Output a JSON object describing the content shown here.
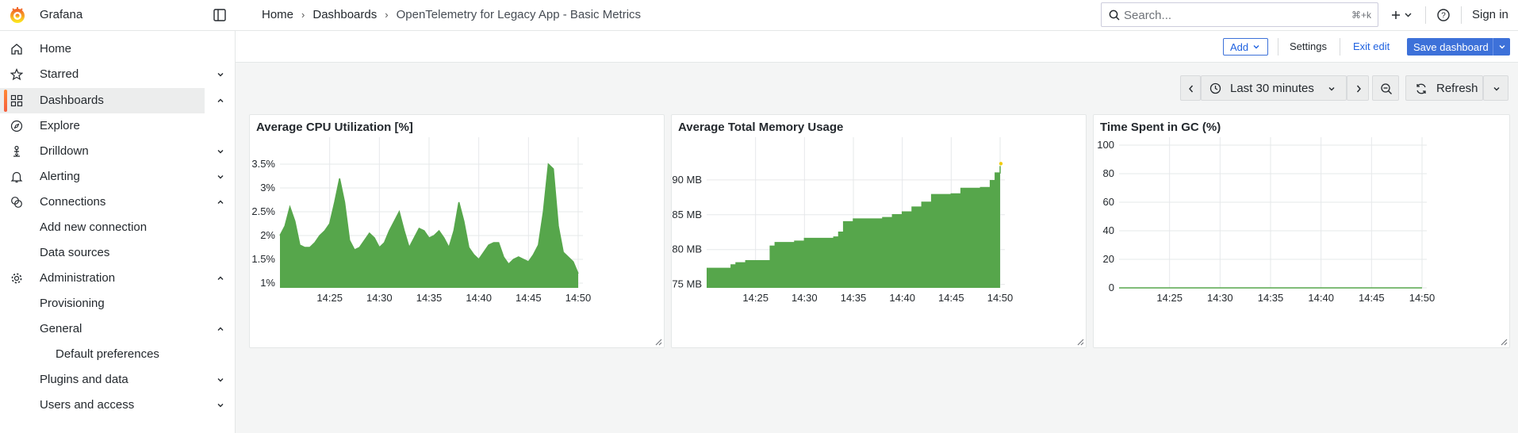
{
  "app": {
    "name": "Grafana",
    "accent": "#f55f3e"
  },
  "breadcrumbs": [
    {
      "label": "Home"
    },
    {
      "label": "Dashboards"
    },
    {
      "label": "OpenTelemetry for Legacy App - Basic Metrics"
    }
  ],
  "search": {
    "placeholder": "Search...",
    "shortcut": "⌘+k"
  },
  "topbar": {
    "signin": "Sign in"
  },
  "sidebar": {
    "items": [
      {
        "label": "Home",
        "icon": "home-icon"
      },
      {
        "label": "Starred",
        "icon": "star-icon",
        "chevron": "down"
      },
      {
        "label": "Dashboards",
        "icon": "apps-icon",
        "chevron": "up",
        "active": true
      },
      {
        "label": "Explore",
        "icon": "compass-icon"
      },
      {
        "label": "Drilldown",
        "icon": "drilldown-icon",
        "chevron": "down"
      },
      {
        "label": "Alerting",
        "icon": "bell-icon",
        "chevron": "down"
      },
      {
        "label": "Connections",
        "icon": "link-icon",
        "chevron": "up"
      },
      {
        "label": "Add new connection"
      },
      {
        "label": "Data sources"
      },
      {
        "label": "Administration",
        "icon": "cog-icon",
        "chevron": "up"
      },
      {
        "label": "Provisioning"
      },
      {
        "label": "General",
        "chevron": "up"
      },
      {
        "label": "Default preferences"
      },
      {
        "label": "Plugins and data",
        "chevron": "down"
      },
      {
        "label": "Users and access",
        "chevron": "down"
      }
    ]
  },
  "actionbar": {
    "add": "Add",
    "settings": "Settings",
    "exit_edit": "Exit edit",
    "save": "Save dashboard"
  },
  "time": {
    "range": "Last 30 minutes",
    "refresh": "Refresh"
  },
  "panels": [
    {
      "title": "Average CPU Utilization [%]"
    },
    {
      "title": "Average Total Memory Usage"
    },
    {
      "title": "Time Spent in GC (%)"
    }
  ],
  "chart_data": [
    {
      "type": "area",
      "title": "Average CPU Utilization [%]",
      "xlabel": "",
      "ylabel": "",
      "x_ticks": [
        "14:25",
        "14:30",
        "14:35",
        "14:40",
        "14:45",
        "14:50"
      ],
      "y_ticks": [
        "1%",
        "1.5%",
        "2%",
        "2.5%",
        "3%",
        "3.5%"
      ],
      "xlim": [
        "14:20",
        "14:50"
      ],
      "ylim": [
        0.9,
        3.9
      ],
      "grid": true,
      "color": "#56a64b",
      "series": [
        {
          "x": [
            "14:20",
            "14:20:30",
            "14:21",
            "14:21:30",
            "14:22",
            "14:22:30",
            "14:23",
            "14:23:30",
            "14:24",
            "14:24:30",
            "14:25",
            "14:25:30",
            "14:26",
            "14:26:30",
            "14:27",
            "14:27:30",
            "14:28",
            "14:28:30",
            "14:29",
            "14:29:30",
            "14:30",
            "14:30:30",
            "14:31",
            "14:31:30",
            "14:32",
            "14:32:30",
            "14:33",
            "14:33:30",
            "14:34",
            "14:34:30",
            "14:35",
            "14:35:30",
            "14:36",
            "14:36:30",
            "14:37",
            "14:37:30",
            "14:38",
            "14:38:30",
            "14:39",
            "14:39:30",
            "14:40",
            "14:40:30",
            "14:41",
            "14:41:30",
            "14:42",
            "14:42:30",
            "14:43",
            "14:43:30",
            "14:44",
            "14:44:30",
            "14:45",
            "14:45:30",
            "14:46",
            "14:46:30",
            "14:47",
            "14:47:30",
            "14:48",
            "14:48:30",
            "14:49",
            "14:49:30",
            "14:50"
          ],
          "values": [
            2.0,
            2.2,
            2.6,
            2.3,
            1.8,
            1.75,
            1.75,
            1.85,
            2.0,
            2.1,
            2.25,
            2.7,
            3.2,
            2.7,
            1.9,
            1.7,
            1.75,
            1.9,
            2.05,
            1.95,
            1.75,
            1.85,
            2.1,
            2.3,
            2.5,
            2.1,
            1.75,
            1.95,
            2.15,
            2.1,
            1.95,
            2.0,
            2.1,
            1.95,
            1.75,
            2.1,
            2.7,
            2.3,
            1.75,
            1.6,
            1.5,
            1.65,
            1.8,
            1.85,
            1.85,
            1.55,
            1.4,
            1.5,
            1.55,
            1.5,
            1.45,
            1.6,
            1.8,
            2.5,
            3.5,
            3.4,
            2.2,
            1.65,
            1.55,
            1.45,
            1.2
          ]
        }
      ]
    },
    {
      "type": "area",
      "title": "Average Total Memory Usage",
      "xlabel": "",
      "ylabel": "",
      "x_ticks": [
        "14:25",
        "14:30",
        "14:35",
        "14:40",
        "14:45",
        "14:50"
      ],
      "y_ticks": [
        "75 MB",
        "80 MB",
        "85 MB",
        "90 MB"
      ],
      "xlim": [
        "14:20",
        "14:50"
      ],
      "ylim": [
        74.5,
        95
      ],
      "grid": true,
      "color": "#56a64b",
      "step": true,
      "series": [
        {
          "x": [
            "14:20",
            "14:21",
            "14:22",
            "14:22:30",
            "14:23",
            "14:24",
            "14:24:30",
            "14:25",
            "14:26",
            "14:26:30",
            "14:27",
            "14:28",
            "14:29",
            "14:30",
            "14:31",
            "14:32",
            "14:33",
            "14:33:30",
            "14:34",
            "14:35",
            "14:36",
            "14:37",
            "14:38",
            "14:39",
            "14:40",
            "14:41",
            "14:42",
            "14:43",
            "14:44",
            "14:45",
            "14:46",
            "14:47",
            "14:48",
            "14:49",
            "14:49:30",
            "14:50"
          ],
          "values": [
            77.3,
            77.3,
            77.3,
            77.8,
            78.1,
            78.4,
            78.4,
            78.4,
            78.4,
            80.5,
            81.0,
            81.0,
            81.2,
            81.6,
            81.6,
            81.6,
            81.8,
            82.5,
            84.0,
            84.4,
            84.4,
            84.4,
            84.6,
            85.0,
            85.4,
            86.1,
            86.8,
            87.9,
            87.9,
            88.0,
            88.8,
            88.8,
            88.9,
            89.9,
            91.0,
            92.0
          ]
        }
      ]
    },
    {
      "type": "line",
      "title": "Time Spent in GC (%)",
      "xlabel": "",
      "ylabel": "",
      "x_ticks": [
        "14:25",
        "14:30",
        "14:35",
        "14:40",
        "14:45",
        "14:50"
      ],
      "y_ticks": [
        "0",
        "20",
        "40",
        "60",
        "80",
        "100"
      ],
      "xlim": [
        "14:20",
        "14:50"
      ],
      "ylim": [
        0,
        100
      ],
      "grid": true,
      "color": "#56a64b",
      "series": [
        {
          "x": [
            "14:20",
            "14:50"
          ],
          "values": [
            0,
            0
          ]
        }
      ]
    }
  ]
}
